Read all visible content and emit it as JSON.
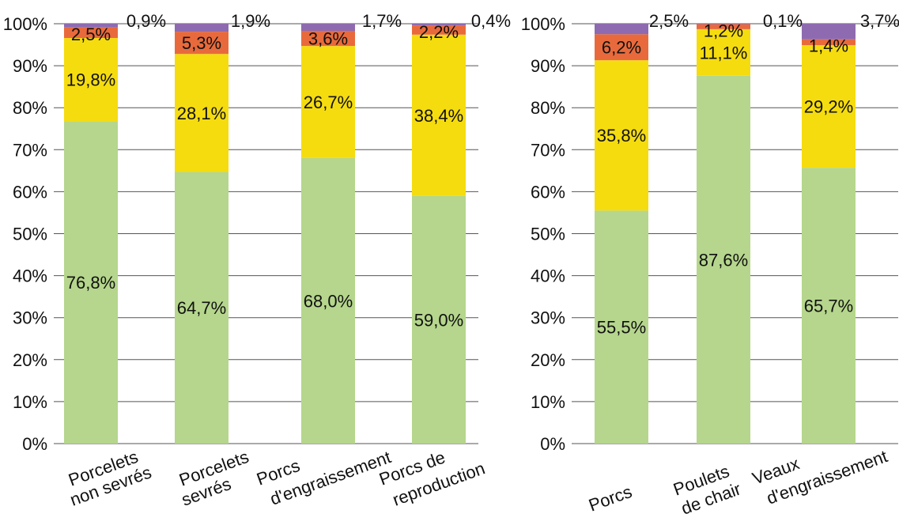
{
  "chart_data": [
    {
      "type": "bar",
      "stacked": true,
      "ylim": [
        0,
        100
      ],
      "y_ticks": [
        "0%",
        "10%",
        "20%",
        "30%",
        "40%",
        "50%",
        "60%",
        "70%",
        "80%",
        "90%",
        "100%"
      ],
      "categories": [
        [
          "Porcelets",
          "non sevrés"
        ],
        [
          "Porcelets",
          "sevrés"
        ],
        [
          "Porcs",
          "d'engraissement"
        ],
        [
          "Porcs de",
          "reproduction"
        ]
      ],
      "series": [
        {
          "color": "#b5d68c",
          "values": [
            76.8,
            64.7,
            68.0,
            59.0
          ],
          "labels": [
            "76,8%",
            "64,7%",
            "68,0%",
            "59,0%"
          ]
        },
        {
          "color": "#f5dc0f",
          "values": [
            19.8,
            28.1,
            26.7,
            38.4
          ],
          "labels": [
            "19,8%",
            "28,1%",
            "26,7%",
            "38,4%"
          ]
        },
        {
          "color": "#e86a3c",
          "values": [
            2.5,
            5.3,
            3.6,
            2.2
          ],
          "labels": [
            "2,5%",
            "5,3%",
            "3,6%",
            "2,2%"
          ]
        },
        {
          "color": "#8e6bb0",
          "values": [
            0.9,
            1.9,
            1.7,
            0.4
          ],
          "labels": [
            "0,9%",
            "1,9%",
            "1,7%",
            "0,4%"
          ]
        }
      ],
      "grid": true
    },
    {
      "type": "bar",
      "stacked": true,
      "ylim": [
        0,
        100
      ],
      "y_ticks": [
        "0%",
        "10%",
        "20%",
        "30%",
        "40%",
        "50%",
        "60%",
        "70%",
        "80%",
        "90%",
        "100%"
      ],
      "categories": [
        [
          "Porcs"
        ],
        [
          "Poulets",
          "de chair"
        ],
        [
          "Veaux",
          "d'engraissement"
        ]
      ],
      "series": [
        {
          "color": "#b5d68c",
          "values": [
            55.5,
            87.6,
            65.7
          ],
          "labels": [
            "55,5%",
            "87,6%",
            "65,7%"
          ]
        },
        {
          "color": "#f5dc0f",
          "values": [
            35.8,
            11.1,
            29.2
          ],
          "labels": [
            "35,8%",
            "11,1%",
            "29,2%"
          ]
        },
        {
          "color": "#e86a3c",
          "values": [
            6.2,
            1.2,
            1.4
          ],
          "labels": [
            "6,2%",
            "1,2%",
            "1,4%"
          ]
        },
        {
          "color": "#8e6bb0",
          "values": [
            2.5,
            0.1,
            3.7
          ],
          "labels": [
            "2,5%",
            "0,1%",
            "3,7%"
          ]
        }
      ],
      "grid": true
    }
  ]
}
